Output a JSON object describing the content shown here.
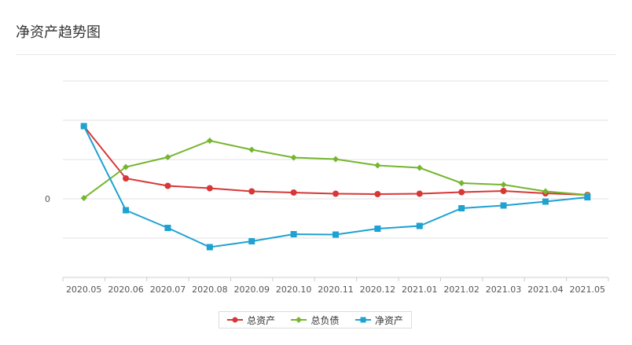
{
  "page": {
    "title": "净资产趋势图"
  },
  "chart_data": {
    "type": "line",
    "title": "净资产趋势图",
    "xlabel": "",
    "ylabel": "",
    "x": [
      "2020.05",
      "2020.06",
      "2020.07",
      "2020.08",
      "2020.09",
      "2020.10",
      "2020.11",
      "2020.12",
      "2021.01",
      "2021.02",
      "2021.03",
      "2021.04",
      "2021.05"
    ],
    "y_ticks": [
      "0"
    ],
    "ylim": [
      -2,
      3
    ],
    "grid": true,
    "legend_placement": "bottom-center",
    "series": [
      {
        "name": "总资产",
        "color": "#d83737",
        "marker": "circle",
        "values": [
          1.85,
          0.52,
          0.33,
          0.27,
          0.19,
          0.16,
          0.13,
          0.12,
          0.13,
          0.17,
          0.2,
          0.14,
          0.1
        ]
      },
      {
        "name": "总负债",
        "color": "#75b62e",
        "marker": "diamond",
        "values": [
          0.02,
          0.81,
          1.06,
          1.48,
          1.25,
          1.05,
          1.01,
          0.85,
          0.79,
          0.4,
          0.36,
          0.19,
          0.1
        ]
      },
      {
        "name": "净资产",
        "color": "#1fa1d2",
        "marker": "square",
        "values": [
          1.85,
          -0.29,
          -0.74,
          -1.23,
          -1.08,
          -0.9,
          -0.91,
          -0.76,
          -0.69,
          -0.24,
          -0.17,
          -0.07,
          0.04
        ]
      }
    ]
  }
}
